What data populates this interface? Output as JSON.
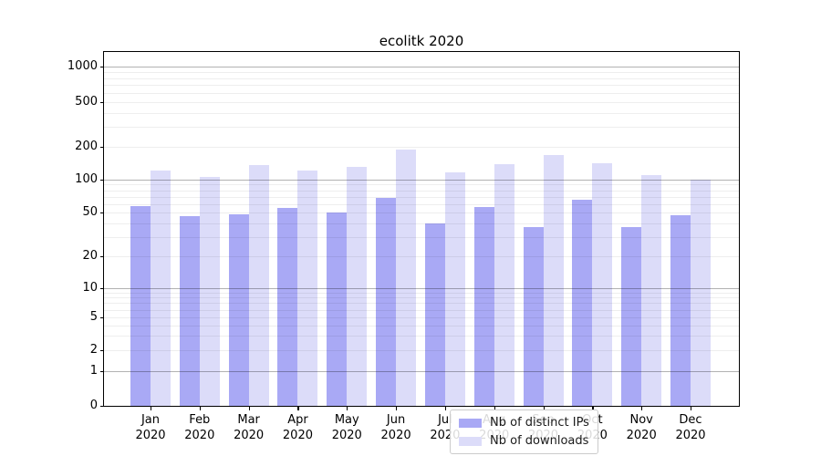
{
  "chart_data": {
    "type": "bar",
    "title": "ecolitk 2020",
    "categories": [
      "Jan 2020",
      "Feb 2020",
      "Mar 2020",
      "Apr 2020",
      "May 2020",
      "Jun 2020",
      "Jul 2020",
      "Aug 2020",
      "Sep 2020",
      "Oct 2020",
      "Nov 2020",
      "Dec 2020"
    ],
    "series": [
      {
        "name": "Nb of distinct IPs",
        "color": "#a9a9f5",
        "values": [
          57,
          46,
          48,
          55,
          50,
          68,
          40,
          56,
          37,
          65,
          37,
          47
        ]
      },
      {
        "name": "Nb of downloads",
        "color": "#dcdcf9",
        "values": [
          121,
          106,
          136,
          121,
          130,
          190,
          116,
          139,
          168,
          141,
          110,
          100
        ]
      }
    ],
    "yscale": "symlog",
    "yticks": [
      0,
      1,
      2,
      5,
      10,
      20,
      50,
      100,
      200,
      500,
      1000
    ],
    "ylim": [
      0,
      1300
    ],
    "grid": true,
    "legend_position": "lower center"
  }
}
